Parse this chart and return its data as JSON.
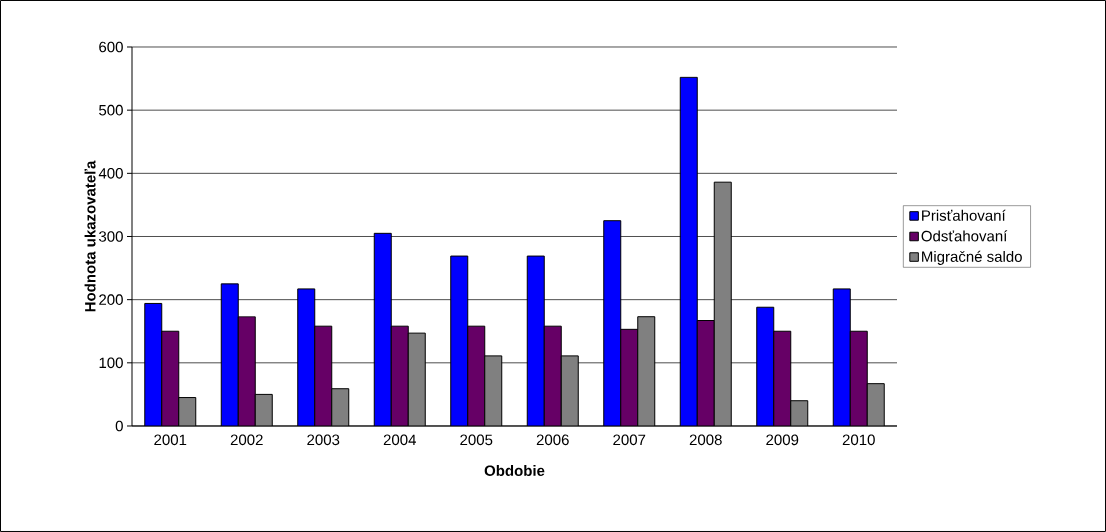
{
  "chart_data": {
    "type": "bar",
    "xlabel": "Obdobie",
    "ylabel": "Hodnota ukazovateľa",
    "categories": [
      "2001",
      "2002",
      "2003",
      "2004",
      "2005",
      "2006",
      "2007",
      "2008",
      "2009",
      "2010"
    ],
    "series": [
      {
        "name": "Prisťahovaní",
        "color": "#0000ff",
        "values": [
          194,
          225,
          217,
          305,
          269,
          269,
          325,
          552,
          188,
          217
        ]
      },
      {
        "name": "Odsťahovaní",
        "color": "#660066",
        "values": [
          150,
          173,
          158,
          158,
          158,
          158,
          153,
          167,
          150,
          150
        ]
      },
      {
        "name": "Migračné saldo",
        "color": "#808080",
        "values": [
          45,
          50,
          59,
          147,
          111,
          111,
          173,
          386,
          40,
          67
        ]
      }
    ],
    "ylim": [
      0,
      600
    ],
    "yticks": [
      0,
      100,
      200,
      300,
      400,
      500,
      600
    ],
    "grid": "y",
    "legend": "right"
  }
}
